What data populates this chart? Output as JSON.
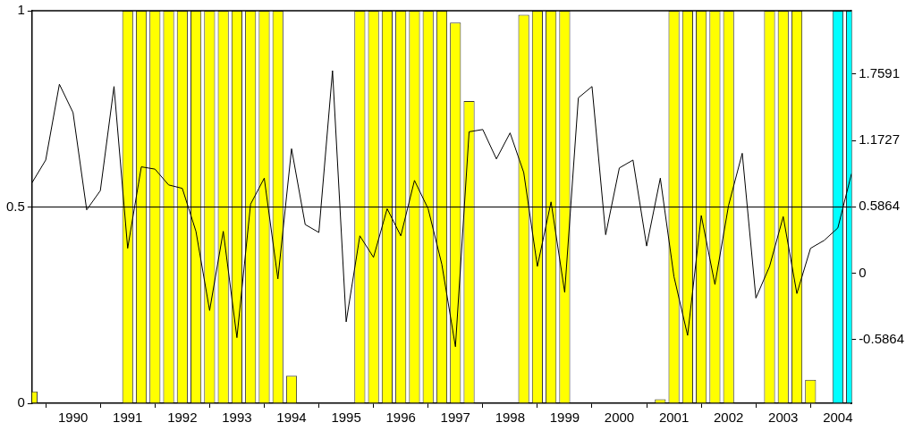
{
  "chart_data": {
    "type": "bar",
    "x": [
      1989.25,
      1989.5,
      1989.75,
      1990,
      1990.25,
      1990.5,
      1990.75,
      1991,
      1991.25,
      1991.5,
      1991.75,
      1992,
      1992.25,
      1992.5,
      1992.75,
      1993,
      1993.25,
      1993.5,
      1993.75,
      1994,
      1994.25,
      1994.5,
      1994.75,
      1995,
      1995.25,
      1995.5,
      1995.75,
      1996,
      1996.25,
      1996.5,
      1996.75,
      1997,
      1997.25,
      1997.5,
      1997.75,
      1998,
      1998.25,
      1998.5,
      1998.75,
      1999,
      1999.25,
      1999.5,
      1999.75,
      2000,
      2000.25,
      2000.5,
      2000.75,
      2001,
      2001.25,
      2001.5,
      2001.75,
      2002,
      2002.25,
      2002.5,
      2002.75,
      2003,
      2003.25,
      2003.5,
      2003.75,
      2004,
      2004.25
    ],
    "series": [
      {
        "colors": [
          "#ffff00",
          "#ffff00",
          "#ffff00",
          "#ffff00",
          "#ffff00",
          "#ffff00",
          "#ffff00",
          "#ffff00",
          "#ffff00",
          "#ffff00",
          "#ffff00",
          "#ffff00",
          "#ffff00",
          "#ffff00",
          "#ffff00",
          "#ffff00",
          "#ffff00",
          "#ffff00",
          "#ffff00",
          "#ffff00",
          "#ffff00",
          "#ffff00",
          "#ffff00",
          "#ffff00",
          "#ffff00",
          "#ffff00",
          "#ffff00",
          "#ffff00",
          "#ffff00",
          "#ffff00",
          "#ffff00",
          "#ffff00",
          "#ffff00",
          "#ffff00",
          "#ffff00",
          "#ffff00",
          "#ffff00",
          "#ffff00",
          "#ffff00",
          "#ffff00",
          "#ffff00",
          "#ffff00",
          "#ffff00",
          "#ffff00",
          "#ffff00",
          "#ffff00",
          "#ffff00",
          "#ffff00",
          "#ffff00",
          "#ffff00",
          "#ffff00",
          "#ffff00",
          "#ffff00",
          "#ffff00",
          "#ffff00",
          "#ffff00",
          "#ffff00",
          "#ffff00",
          "#ffff00",
          "#00ffff",
          "#00ffff"
        ],
        "values": [
          0.03,
          0,
          0,
          0,
          0,
          0,
          0,
          1,
          1,
          1,
          1,
          1,
          1,
          1,
          1,
          1,
          1,
          1,
          1,
          0.07,
          0,
          0,
          0,
          0,
          1,
          1,
          1,
          1,
          1,
          1,
          1,
          0.97,
          0.77,
          0,
          0,
          0,
          0.99,
          1,
          1,
          1,
          0,
          0,
          0,
          0,
          0,
          0,
          0.01,
          1,
          1,
          1,
          1,
          1,
          0,
          0,
          1,
          1,
          1,
          0.06,
          0,
          1,
          1
        ]
      },
      {
        "type": "line",
        "axis": "y2",
        "color": "#000000",
        "values": [
          0.8,
          1.0,
          1.67,
          1.42,
          0.56,
          0.73,
          1.65,
          0.22,
          0.94,
          0.92,
          0.78,
          0.75,
          0.37,
          -0.33,
          0.37,
          -0.57,
          0.61,
          0.84,
          -0.05,
          1.1,
          0.43,
          0.36,
          1.79,
          -0.43,
          0.33,
          0.14,
          0.57,
          0.33,
          0.82,
          0.57,
          0.08,
          -0.65,
          1.25,
          1.27,
          1.01,
          1.24,
          0.89,
          0.06,
          0.63,
          -0.17,
          1.55,
          1.65,
          0.34,
          0.93,
          1.0,
          0.24,
          0.84,
          -0.03,
          -0.55,
          0.51,
          -0.1,
          0.6,
          1.06,
          -0.22,
          0.06,
          0.5,
          -0.18,
          0.22,
          0.29,
          0.4,
          0.88
        ]
      }
    ],
    "xlim": [
      1989.25,
      2004.25
    ],
    "xticks": [
      1990,
      1991,
      1992,
      1993,
      1994,
      1995,
      1996,
      1997,
      1998,
      1999,
      2000,
      2001,
      2002,
      2003,
      2004
    ],
    "ylim": [
      0,
      1
    ],
    "yticks": [
      0,
      0.5,
      1
    ],
    "y2lim": [
      -1.15,
      2.32
    ],
    "y2ticks": [
      -0.5864,
      0,
      0.5864,
      1.1727,
      1.7591
    ],
    "ref_lines": [
      {
        "axis": "y",
        "value": 0.5,
        "color": "#000000"
      }
    ],
    "marker": "none",
    "grid": false,
    "legend": false
  }
}
